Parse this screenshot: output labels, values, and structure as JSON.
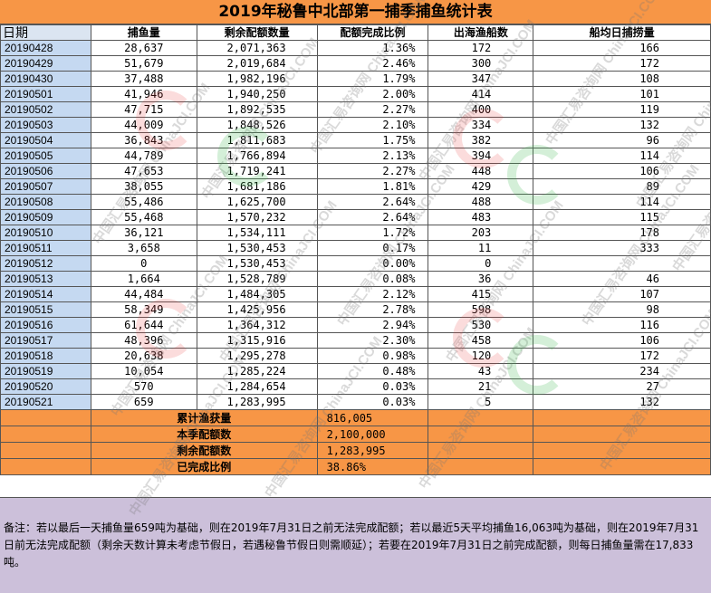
{
  "title": "2019年秘鲁中北部第一捕季捕鱼统计表",
  "headers": [
    "日期",
    "捕鱼量",
    "剩余配额数量",
    "配额完成比例",
    "出海渔船数",
    "船均日捕捞量"
  ],
  "rows": [
    [
      "20190428",
      "28,637",
      "2,071,363",
      "1.36%",
      "172",
      "166"
    ],
    [
      "20190429",
      "51,679",
      "2,019,684",
      "2.46%",
      "300",
      "172"
    ],
    [
      "20190430",
      "37,488",
      "1,982,196",
      "1.79%",
      "347",
      "108"
    ],
    [
      "20190501",
      "41,946",
      "1,940,250",
      "2.00%",
      "414",
      "101"
    ],
    [
      "20190502",
      "47,715",
      "1,892,535",
      "2.27%",
      "400",
      "119"
    ],
    [
      "20190503",
      "44,009",
      "1,848,526",
      "2.10%",
      "334",
      "132"
    ],
    [
      "20190504",
      "36,843",
      "1,811,683",
      "1.75%",
      "382",
      "96"
    ],
    [
      "20190505",
      "44,789",
      "1,766,894",
      "2.13%",
      "394",
      "114"
    ],
    [
      "20190506",
      "47,653",
      "1,719,241",
      "2.27%",
      "448",
      "106"
    ],
    [
      "20190507",
      "38,055",
      "1,681,186",
      "1.81%",
      "429",
      "89"
    ],
    [
      "20190508",
      "55,486",
      "1,625,700",
      "2.64%",
      "488",
      "114"
    ],
    [
      "20190509",
      "55,468",
      "1,570,232",
      "2.64%",
      "483",
      "115"
    ],
    [
      "20190510",
      "36,121",
      "1,534,111",
      "1.72%",
      "203",
      "178"
    ],
    [
      "20190511",
      "3,658",
      "1,530,453",
      "0.17%",
      "11",
      "333"
    ],
    [
      "20190512",
      "0",
      "1,530,453",
      "0.00%",
      "0",
      ""
    ],
    [
      "20190513",
      "1,664",
      "1,528,789",
      "0.08%",
      "36",
      "46"
    ],
    [
      "20190514",
      "44,484",
      "1,484,305",
      "2.12%",
      "415",
      "107"
    ],
    [
      "20190515",
      "58,349",
      "1,425,956",
      "2.78%",
      "598",
      "98"
    ],
    [
      "20190516",
      "61,644",
      "1,364,312",
      "2.94%",
      "530",
      "116"
    ],
    [
      "20190517",
      "48,396",
      "1,315,916",
      "2.30%",
      "458",
      "106"
    ],
    [
      "20190518",
      "20,638",
      "1,295,278",
      "0.98%",
      "120",
      "172"
    ],
    [
      "20190519",
      "10,054",
      "1,285,224",
      "0.48%",
      "43",
      "234"
    ],
    [
      "20190520",
      "570",
      "1,284,654",
      "0.03%",
      "21",
      "27"
    ],
    [
      "20190521",
      "659",
      "1,283,995",
      "0.03%",
      "5",
      "132"
    ]
  ],
  "summary": [
    {
      "label": "累计渔获量",
      "value": "816,005"
    },
    {
      "label": "本季配额数",
      "value": "2,100,000"
    },
    {
      "label": "剩余配额数",
      "value": "1,283,995"
    },
    {
      "label": "已完成比例",
      "value": "38.86%"
    }
  ],
  "note": "备注：若以最后一天捕鱼量659吨为基础，则在2019年7月31日之前无法完成配额；若以最近5天平均捕鱼16,063吨为基础，则在2019年7月31日前无法完成配额（剩余天数计算未考虑节假日，若遇秘鲁节假日则需顺延）；若要在2019年7月31日之前完成配额，则每日捕鱼量需在17,833吨。",
  "watermark_text": "中国汇易咨询网 ChinaJCI.COM",
  "colors": {
    "title_bg": "#f79646",
    "date_bg": "#c5d9f1",
    "note_bg": "#ccc0da",
    "summary_bg": "#f79646"
  }
}
